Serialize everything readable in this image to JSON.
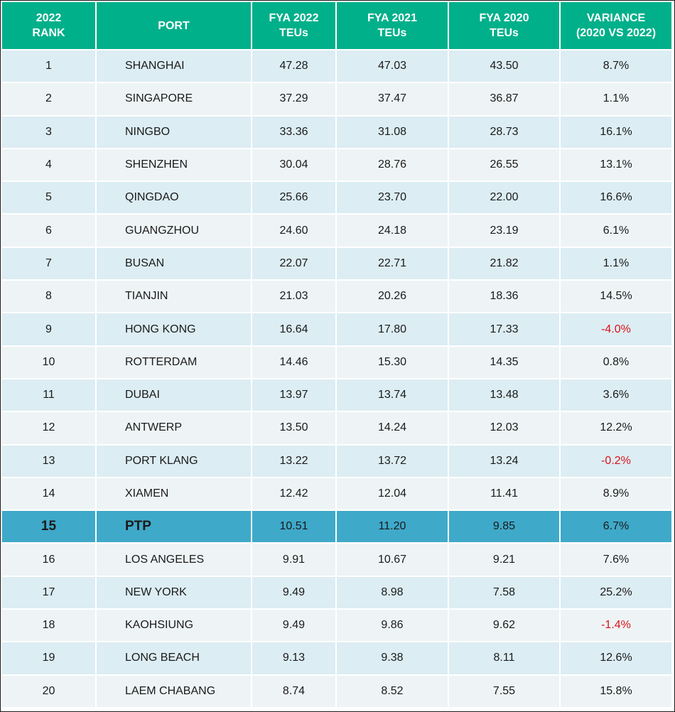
{
  "chart_data": {
    "type": "table",
    "columns": [
      [
        "2022",
        "RANK"
      ],
      [
        "PORT"
      ],
      [
        "FYA 2022",
        "TEUs"
      ],
      [
        "FYA 2021",
        "TEUs"
      ],
      [
        "FYA 2020",
        "TEUs"
      ],
      [
        "VARIANCE",
        "(2020 VS 2022)"
      ]
    ],
    "rows": [
      {
        "rank": "1",
        "port": "SHANGHAI",
        "fya2022": "47.28",
        "fya2021": "47.03",
        "fya2020": "43.50",
        "variance": "8.7%"
      },
      {
        "rank": "2",
        "port": "SINGAPORE",
        "fya2022": "37.29",
        "fya2021": "37.47",
        "fya2020": "36.87",
        "variance": "1.1%"
      },
      {
        "rank": "3",
        "port": "NINGBO",
        "fya2022": "33.36",
        "fya2021": "31.08",
        "fya2020": "28.73",
        "variance": "16.1%"
      },
      {
        "rank": "4",
        "port": "SHENZHEN",
        "fya2022": "30.04",
        "fya2021": "28.76",
        "fya2020": "26.55",
        "variance": "13.1%"
      },
      {
        "rank": "5",
        "port": "QINGDAO",
        "fya2022": "25.66",
        "fya2021": "23.70",
        "fya2020": "22.00",
        "variance": "16.6%"
      },
      {
        "rank": "6",
        "port": "GUANGZHOU",
        "fya2022": "24.60",
        "fya2021": "24.18",
        "fya2020": "23.19",
        "variance": "6.1%"
      },
      {
        "rank": "7",
        "port": "BUSAN",
        "fya2022": "22.07",
        "fya2021": "22.71",
        "fya2020": "21.82",
        "variance": "1.1%"
      },
      {
        "rank": "8",
        "port": "TIANJIN",
        "fya2022": "21.03",
        "fya2021": "20.26",
        "fya2020": "18.36",
        "variance": "14.5%"
      },
      {
        "rank": "9",
        "port": "HONG KONG",
        "fya2022": "16.64",
        "fya2021": "17.80",
        "fya2020": "17.33",
        "variance": "-4.0%"
      },
      {
        "rank": "10",
        "port": "ROTTERDAM",
        "fya2022": "14.46",
        "fya2021": "15.30",
        "fya2020": "14.35",
        "variance": "0.8%"
      },
      {
        "rank": "11",
        "port": "DUBAI",
        "fya2022": "13.97",
        "fya2021": "13.74",
        "fya2020": "13.48",
        "variance": "3.6%"
      },
      {
        "rank": "12",
        "port": "ANTWERP",
        "fya2022": "13.50",
        "fya2021": "14.24",
        "fya2020": "12.03",
        "variance": "12.2%"
      },
      {
        "rank": "13",
        "port": "PORT KLANG",
        "fya2022": "13.22",
        "fya2021": "13.72",
        "fya2020": "13.24",
        "variance": "-0.2%"
      },
      {
        "rank": "14",
        "port": "XIAMEN",
        "fya2022": "12.42",
        "fya2021": "12.04",
        "fya2020": "11.41",
        "variance": "8.9%"
      },
      {
        "rank": "15",
        "port": "PTP",
        "fya2022": "10.51",
        "fya2021": "11.20",
        "fya2020": "9.85",
        "variance": "6.7%",
        "highlight": true
      },
      {
        "rank": "16",
        "port": "LOS ANGELES",
        "fya2022": "9.91",
        "fya2021": "10.67",
        "fya2020": "9.21",
        "variance": "7.6%"
      },
      {
        "rank": "17",
        "port": "NEW YORK",
        "fya2022": "9.49",
        "fya2021": "8.98",
        "fya2020": "7.58",
        "variance": "25.2%"
      },
      {
        "rank": "18",
        "port": "KAOHSIUNG",
        "fya2022": "9.49",
        "fya2021": "9.86",
        "fya2020": "9.62",
        "variance": "-1.4%"
      },
      {
        "rank": "19",
        "port": "LONG BEACH",
        "fya2022": "9.13",
        "fya2021": "9.38",
        "fya2020": "8.11",
        "variance": "12.6%"
      },
      {
        "rank": "20",
        "port": "LAEM CHABANG",
        "fya2022": "8.74",
        "fya2021": "8.52",
        "fya2020": "7.55",
        "variance": "15.8%"
      }
    ]
  },
  "colors": {
    "header_bg": "#00b08a",
    "row_odd": "#dcedf3",
    "row_even": "#eef4f5",
    "highlight_row": "#3fa9c9",
    "negative_text": "#d9141b"
  }
}
